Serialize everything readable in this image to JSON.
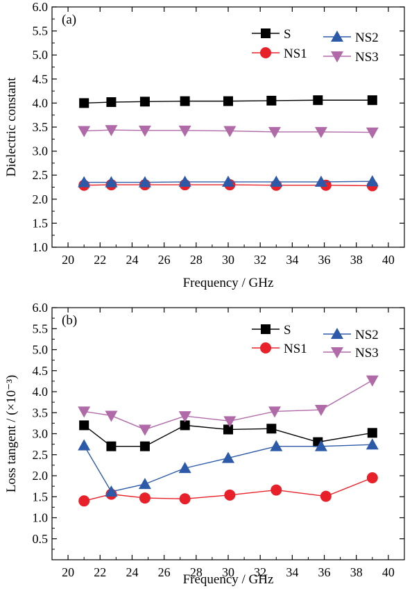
{
  "chart_data": [
    {
      "type": "line",
      "panel_label": "(a)",
      "xlabel": "Frequency / GHz",
      "ylabel": "Dielectric constant",
      "xlim": [
        19,
        41
      ],
      "ylim": [
        1.0,
        6.0
      ],
      "xticks": [
        "20",
        "22",
        "24",
        "26",
        "28",
        "30",
        "32",
        "34",
        "36",
        "38",
        "40"
      ],
      "yticks": [
        "1.0",
        "1.5",
        "2.0",
        "2.5",
        "3.0",
        "3.5",
        "4.0",
        "4.5",
        "5.0",
        "5.5",
        "6.0"
      ],
      "grid": false,
      "legend_position": "top-right",
      "series": [
        {
          "name": "S",
          "color": "#000000",
          "marker": "square",
          "x": [
            21.0,
            22.7,
            24.8,
            27.3,
            30.0,
            32.7,
            35.6,
            39.0
          ],
          "y": [
            4.0,
            4.02,
            4.03,
            4.04,
            4.04,
            4.05,
            4.06,
            4.06
          ]
        },
        {
          "name": "NS1",
          "color": "#e8202a",
          "marker": "circle",
          "x": [
            21.0,
            22.7,
            24.8,
            27.3,
            30.1,
            33.0,
            36.1,
            39.0
          ],
          "y": [
            2.29,
            2.3,
            2.3,
            2.3,
            2.3,
            2.29,
            2.29,
            2.28
          ]
        },
        {
          "name": "NS2",
          "color": "#2c5aa8",
          "marker": "triangle-up",
          "x": [
            21.0,
            22.7,
            24.8,
            27.3,
            30.0,
            33.0,
            35.8,
            39.0
          ],
          "y": [
            2.35,
            2.35,
            2.35,
            2.36,
            2.36,
            2.36,
            2.36,
            2.37
          ]
        },
        {
          "name": "NS3",
          "color": "#b06aa8",
          "marker": "triangle-down",
          "x": [
            21.0,
            22.7,
            24.8,
            27.3,
            30.1,
            32.9,
            35.8,
            39.0
          ],
          "y": [
            3.42,
            3.44,
            3.43,
            3.43,
            3.42,
            3.4,
            3.4,
            3.39
          ]
        }
      ]
    },
    {
      "type": "line",
      "panel_label": "(b)",
      "xlabel": "Frequency / GHz",
      "ylabel": "Loss tangent / (×10⁻³)",
      "xlim": [
        19,
        41
      ],
      "ylim": [
        0.0,
        6.0
      ],
      "xticks": [
        "20",
        "22",
        "24",
        "26",
        "28",
        "30",
        "32",
        "34",
        "36",
        "38",
        "40"
      ],
      "yticks": [
        "0.5",
        "1.0",
        "1.5",
        "2.0",
        "2.5",
        "3.0",
        "3.5",
        "4.0",
        "4.5",
        "5.0",
        "5.5",
        "6.0"
      ],
      "grid": false,
      "legend_position": "top-right",
      "series": [
        {
          "name": "S",
          "color": "#000000",
          "marker": "square",
          "x": [
            21.0,
            22.7,
            24.8,
            27.3,
            30.0,
            32.7,
            35.6,
            39.0
          ],
          "y": [
            3.2,
            2.7,
            2.7,
            3.2,
            3.1,
            3.12,
            2.8,
            3.02
          ]
        },
        {
          "name": "NS1",
          "color": "#e8202a",
          "marker": "circle",
          "x": [
            21.0,
            22.7,
            24.8,
            27.3,
            30.1,
            33.0,
            36.1,
            39.0
          ],
          "y": [
            1.4,
            1.56,
            1.47,
            1.45,
            1.54,
            1.66,
            1.51,
            1.95
          ]
        },
        {
          "name": "NS2",
          "color": "#2c5aa8",
          "marker": "triangle-up",
          "x": [
            21.0,
            22.7,
            24.8,
            27.3,
            30.0,
            33.0,
            35.8,
            39.0
          ],
          "y": [
            2.72,
            1.62,
            1.8,
            2.18,
            2.42,
            2.7,
            2.7,
            2.74
          ]
        },
        {
          "name": "NS3",
          "color": "#b06aa8",
          "marker": "triangle-down",
          "x": [
            21.0,
            22.7,
            24.8,
            27.3,
            30.1,
            32.9,
            35.8,
            39.0
          ],
          "y": [
            3.53,
            3.43,
            3.1,
            3.42,
            3.3,
            3.53,
            3.57,
            4.27
          ]
        }
      ]
    }
  ]
}
